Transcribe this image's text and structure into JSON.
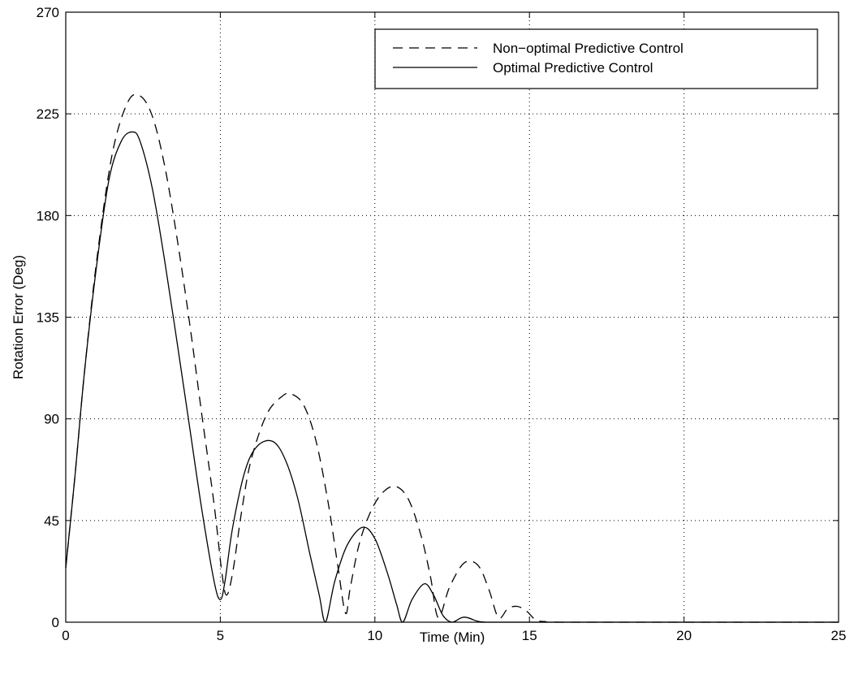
{
  "chart_data": {
    "type": "line",
    "title": "",
    "xlabel": "Time (Min)",
    "ylabel": "Rotation Error (Deg)",
    "xlim": [
      0,
      25
    ],
    "ylim": [
      0,
      270
    ],
    "xticks": [
      0,
      5,
      10,
      15,
      20,
      25
    ],
    "yticks": [
      0,
      45,
      90,
      135,
      180,
      225,
      270
    ],
    "grid": true,
    "legend_position": "top-right",
    "series": [
      {
        "name": "Non−optimal Predictive Control",
        "style": "dashed",
        "color": "#000000",
        "x": [
          0,
          0.3,
          0.6,
          1.0,
          1.5,
          2.0,
          2.4,
          2.8,
          3.2,
          3.6,
          4.0,
          4.4,
          4.8,
          5.05,
          5.2,
          5.4,
          5.7,
          6.0,
          6.5,
          7.0,
          7.3,
          7.7,
          8.1,
          8.5,
          8.8,
          9.05,
          9.2,
          9.5,
          9.9,
          10.3,
          10.7,
          11.1,
          11.5,
          11.8,
          12.05,
          12.4,
          12.8,
          13.1,
          13.4,
          13.7,
          14.0,
          14.3,
          14.6,
          14.9,
          15.2,
          15.5,
          16.0,
          20.0,
          25.0
        ],
        "y": [
          24,
          65,
          110,
          160,
          207,
          230,
          233,
          224,
          202,
          170,
          133,
          92,
          52,
          22,
          12,
          22,
          50,
          72,
          92,
          100,
          101,
          96,
          80,
          52,
          25,
          4,
          15,
          35,
          50,
          58,
          60,
          54,
          38,
          20,
          2,
          15,
          25,
          27,
          24,
          14,
          2,
          6,
          7,
          5,
          1,
          0.3,
          0,
          0,
          0
        ]
      },
      {
        "name": "Optimal Predictive Control",
        "style": "solid",
        "color": "#000000",
        "x": [
          0,
          0.3,
          0.6,
          1.0,
          1.4,
          1.8,
          2.15,
          2.4,
          2.8,
          3.2,
          3.6,
          4.0,
          4.4,
          4.8,
          5.0,
          5.15,
          5.4,
          5.8,
          6.2,
          6.7,
          7.1,
          7.5,
          7.9,
          8.2,
          8.4,
          8.7,
          9.1,
          9.6,
          10.0,
          10.4,
          10.7,
          10.9,
          11.2,
          11.6,
          11.9,
          12.2,
          12.5,
          12.8,
          13.0,
          13.3,
          13.6,
          14.0,
          20.0,
          25.0
        ],
        "y": [
          24,
          65,
          110,
          158,
          196,
          213,
          217,
          213,
          192,
          160,
          124,
          87,
          50,
          18,
          10,
          18,
          42,
          67,
          78,
          80,
          72,
          55,
          30,
          12,
          0,
          18,
          34,
          42,
          37,
          22,
          8,
          0,
          10,
          17,
          12,
          3,
          0,
          2,
          2,
          0.5,
          0,
          0,
          0,
          0
        ]
      }
    ]
  }
}
